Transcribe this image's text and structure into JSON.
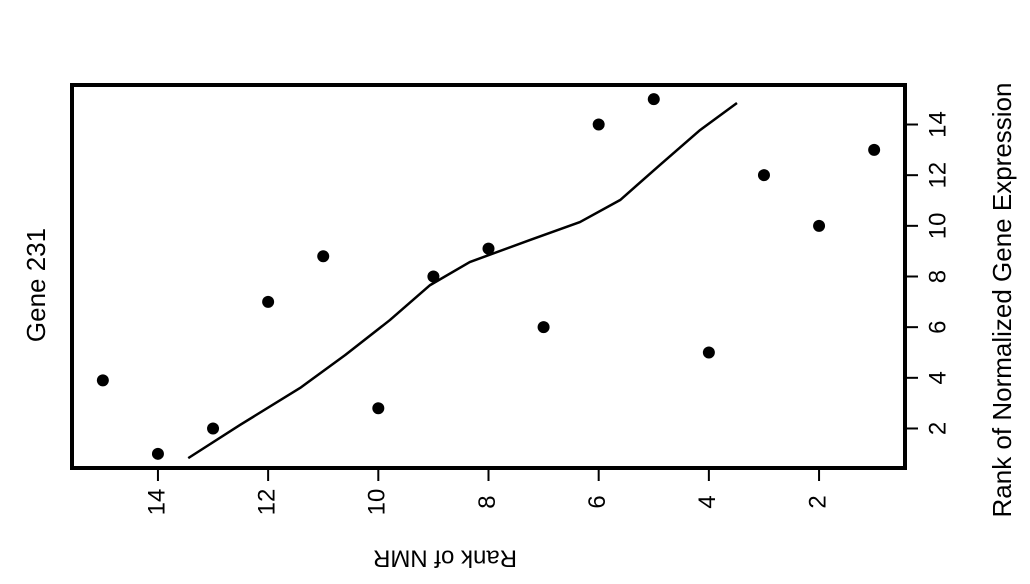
{
  "chart_data": {
    "type": "scatter",
    "title": "Gene 231",
    "x_label": "Rank of NMR",
    "y_label": "Rank of Normalized Gene Expression",
    "xlim": [
      15.56,
      0.44
    ],
    "ylim": [
      0.44,
      15.56
    ],
    "xticks": [
      14,
      12,
      10,
      8,
      6,
      4,
      2
    ],
    "yticks": [
      2,
      4,
      6,
      8,
      10,
      12,
      14
    ],
    "series": [
      {
        "type": "scatter",
        "color": "#000000",
        "x": [
          15,
          14,
          13,
          12,
          11,
          10,
          9,
          8,
          7,
          6,
          5,
          4,
          3,
          2,
          1
        ],
        "values": [
          3.9,
          1,
          2,
          7,
          8.8,
          2.8,
          8,
          9.1,
          6,
          14,
          15,
          5,
          12,
          10,
          13
        ]
      },
      {
        "type": "line",
        "color": "#000000",
        "x": [
          13.45,
          12.51,
          11.42,
          10.6,
          9.79,
          9.06,
          8.34,
          7.25,
          6.34,
          5.61,
          4.89,
          4.16,
          3.49
        ],
        "values": [
          0.83,
          2.14,
          3.6,
          4.9,
          6.28,
          7.66,
          8.57,
          9.44,
          10.15,
          11.02,
          12.4,
          13.78,
          14.85
        ]
      }
    ]
  }
}
